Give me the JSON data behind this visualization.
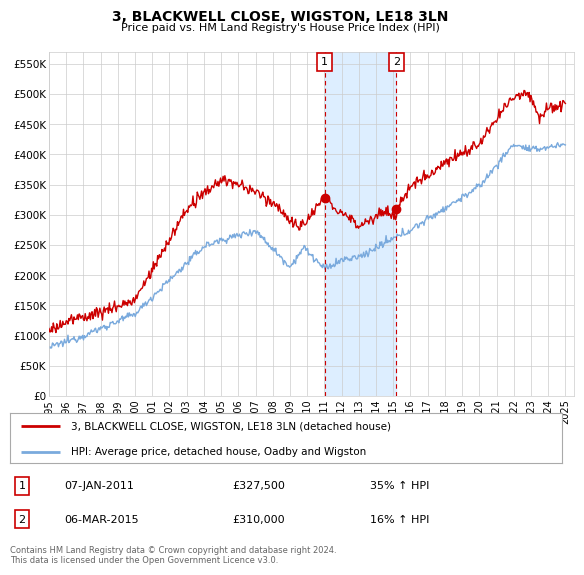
{
  "title": "3, BLACKWELL CLOSE, WIGSTON, LE18 3LN",
  "subtitle": "Price paid vs. HM Land Registry's House Price Index (HPI)",
  "xlim_start": 1995.0,
  "xlim_end": 2025.5,
  "ylim": [
    0,
    570000
  ],
  "yticks": [
    0,
    50000,
    100000,
    150000,
    200000,
    250000,
    300000,
    350000,
    400000,
    450000,
    500000,
    550000
  ],
  "ytick_labels": [
    "£0",
    "£50K",
    "£100K",
    "£150K",
    "£200K",
    "£250K",
    "£300K",
    "£350K",
    "£400K",
    "£450K",
    "£500K",
    "£550K"
  ],
  "xtick_labels": [
    "1995",
    "1996",
    "1997",
    "1998",
    "1999",
    "2000",
    "2001",
    "2002",
    "2003",
    "2004",
    "2005",
    "2006",
    "2007",
    "2008",
    "2009",
    "2010",
    "2011",
    "2012",
    "2013",
    "2014",
    "2015",
    "2016",
    "2017",
    "2018",
    "2019",
    "2020",
    "2021",
    "2022",
    "2023",
    "2024",
    "2025"
  ],
  "sale_color": "#cc0000",
  "hpi_color": "#7aaadd",
  "shade_color": "#ddeeff",
  "marker1_year": 2011.02,
  "marker1_value": 327500,
  "marker1_label": "1",
  "marker1_date": "07-JAN-2011",
  "marker1_price": "£327,500",
  "marker1_pct": "35% ↑ HPI",
  "marker2_year": 2015.17,
  "marker2_value": 310000,
  "marker2_label": "2",
  "marker2_date": "06-MAR-2015",
  "marker2_price": "£310,000",
  "marker2_pct": "16% ↑ HPI",
  "legend_line1": "3, BLACKWELL CLOSE, WIGSTON, LE18 3LN (detached house)",
  "legend_line2": "HPI: Average price, detached house, Oadby and Wigston",
  "footer": "Contains HM Land Registry data © Crown copyright and database right 2024.\nThis data is licensed under the Open Government Licence v3.0.",
  "background_color": "#ffffff",
  "grid_color": "#cccccc"
}
